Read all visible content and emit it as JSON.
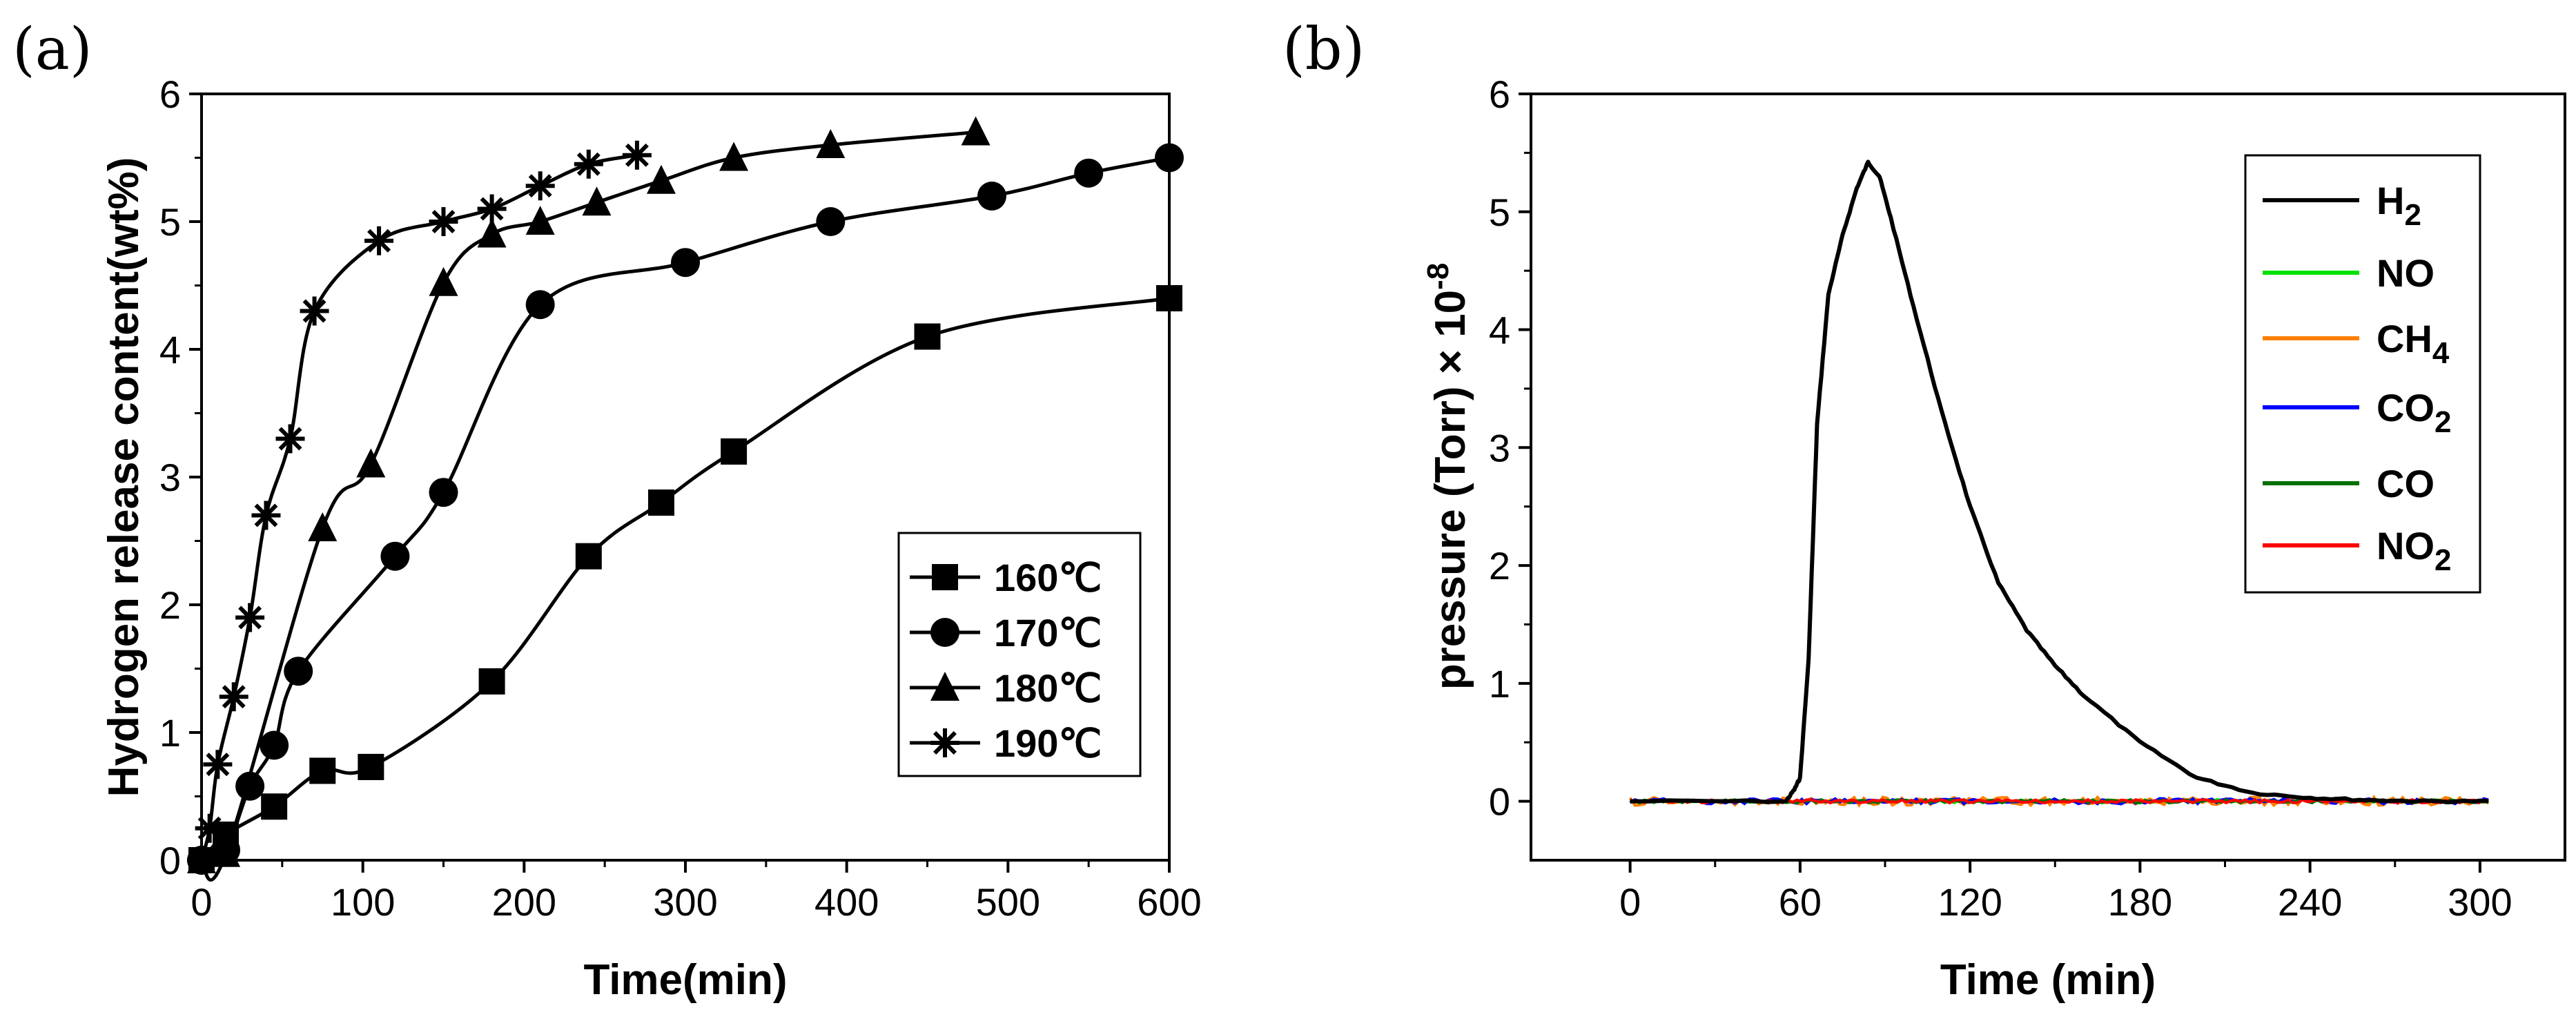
{
  "chart_data": [
    {
      "panel": "(a)",
      "type": "line",
      "xlabel": "Time(min)",
      "ylabel": "Hydrogen release content(wt%)",
      "xlim": [
        0,
        600
      ],
      "ylim": [
        0,
        6
      ],
      "xticks": [
        0,
        100,
        200,
        300,
        400,
        500,
        600
      ],
      "yticks": [
        0,
        1,
        2,
        3,
        4,
        5,
        6
      ],
      "legend_position": "center-right",
      "series": [
        {
          "name": "160℃",
          "marker": "square",
          "x": [
            0,
            15,
            45,
            75,
            105,
            180,
            240,
            285,
            330,
            450,
            600
          ],
          "y": [
            0,
            0.2,
            0.42,
            0.7,
            0.73,
            1.4,
            2.38,
            2.8,
            3.2,
            4.1,
            4.4
          ]
        },
        {
          "name": "170℃",
          "marker": "circle",
          "x": [
            0,
            15,
            30,
            45,
            60,
            120,
            150,
            210,
            300,
            390,
            490,
            550,
            600
          ],
          "y": [
            0,
            0.08,
            0.58,
            0.9,
            1.48,
            2.38,
            2.88,
            4.35,
            4.68,
            5.0,
            5.2,
            5.38,
            5.5
          ]
        },
        {
          "name": "180℃",
          "marker": "triangle",
          "x": [
            0,
            15,
            75,
            105,
            150,
            180,
            210,
            245,
            285,
            330,
            390,
            480
          ],
          "y": [
            0,
            0.05,
            2.6,
            3.1,
            4.52,
            4.9,
            5.0,
            5.15,
            5.32,
            5.5,
            5.6,
            5.7
          ]
        },
        {
          "name": "190℃",
          "marker": "asterisk",
          "x": [
            0,
            5,
            10,
            20,
            30,
            40,
            55,
            70,
            110,
            150,
            180,
            210,
            240,
            270
          ],
          "y": [
            0,
            0.25,
            0.75,
            1.28,
            1.9,
            2.7,
            3.3,
            4.3,
            4.85,
            5.0,
            5.1,
            5.28,
            5.45,
            5.52
          ]
        }
      ]
    },
    {
      "panel": "(b)",
      "type": "line",
      "xlabel": "Time (min)",
      "ylabel_main": "pressure (Torr) × 10",
      "ylabel_exp": "-8",
      "xlim": [
        -35,
        330
      ],
      "ylim": [
        -0.5,
        6
      ],
      "xticks": [
        0,
        60,
        120,
        180,
        240,
        300
      ],
      "yticks": [
        0,
        1,
        2,
        3,
        4,
        5,
        6
      ],
      "legend_position": "top-right",
      "series": [
        {
          "name": "H2",
          "label_main": "H",
          "label_sub": "2",
          "color": "#000000",
          "x": [
            0,
            55,
            58,
            60,
            63,
            66,
            70,
            75,
            80,
            84,
            88,
            92,
            100,
            110,
            120,
            130,
            140,
            150,
            160,
            180,
            200,
            220,
            240,
            260,
            280,
            303
          ],
          "y": [
            0,
            0,
            0.1,
            0.2,
            1.2,
            3.2,
            4.3,
            4.8,
            5.2,
            5.42,
            5.3,
            4.95,
            4.2,
            3.3,
            2.5,
            1.85,
            1.45,
            1.15,
            0.9,
            0.5,
            0.2,
            0.07,
            0.03,
            0.01,
            0.0,
            0.0
          ]
        },
        {
          "name": "NO",
          "label_main": "NO",
          "label_sub": "",
          "color": "#00e000",
          "x": [
            0,
            303
          ],
          "y": [
            0,
            0
          ]
        },
        {
          "name": "CH4",
          "label_main": "CH",
          "label_sub": "4",
          "color": "#ff8000",
          "x": [
            0,
            303
          ],
          "y": [
            0,
            0
          ]
        },
        {
          "name": "CO2",
          "label_main": "CO",
          "label_sub": "2",
          "color": "#0000ff",
          "x": [
            0,
            303
          ],
          "y": [
            0,
            0
          ]
        },
        {
          "name": "CO",
          "label_main": "CO",
          "label_sub": "",
          "color": "#007000",
          "x": [
            0,
            303
          ],
          "y": [
            0,
            0
          ]
        },
        {
          "name": "NO2",
          "label_main": "NO",
          "label_sub": "2",
          "color": "#ff0000",
          "x": [
            0,
            303
          ],
          "y": [
            0,
            0
          ]
        }
      ]
    }
  ]
}
